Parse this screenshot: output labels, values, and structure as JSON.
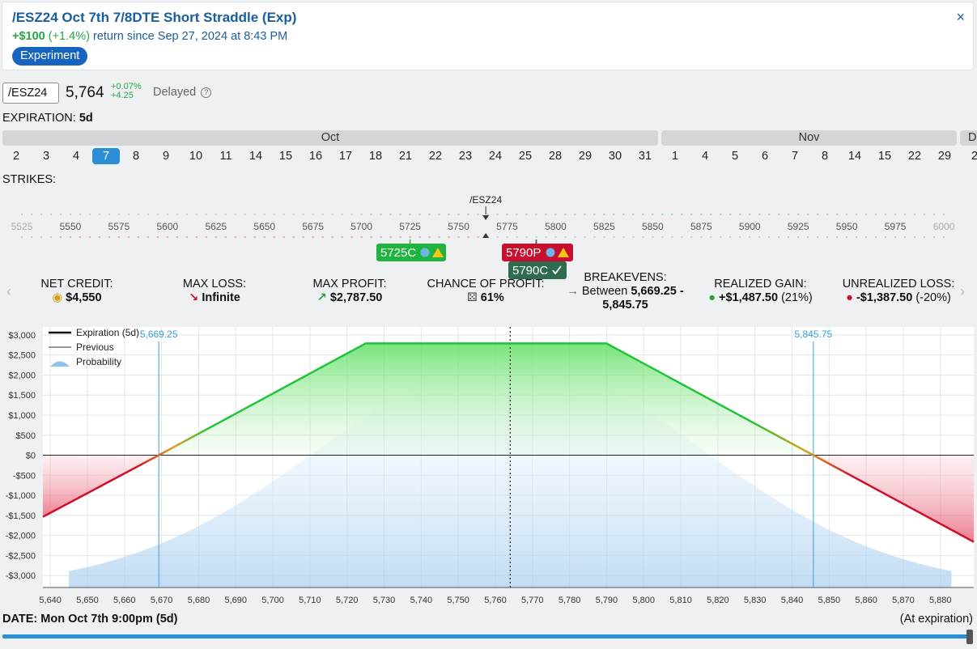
{
  "header": {
    "title": "/ESZ24 Oct 7th 7/8DTE Short Straddle (Exp)",
    "return_amount": "+$100",
    "return_pct": "(+1.4%)",
    "return_text": "return since Sep 27, 2024 at 8:43 PM",
    "tag": "Experiment",
    "close_icon": "×"
  },
  "quote": {
    "symbol": "/ESZ24",
    "price": "5,764",
    "change_pct": "+0.07%",
    "change_abs": "+4.25",
    "delayed": "Delayed",
    "help_icon": "?"
  },
  "expiration": {
    "label": "EXPIRATION:",
    "value": "5d",
    "months": [
      "Oct",
      "Nov",
      "D"
    ],
    "days": [
      "2",
      "3",
      "4",
      "7",
      "8",
      "9",
      "10",
      "11",
      "14",
      "15",
      "16",
      "17",
      "18",
      "21",
      "22",
      "23",
      "24",
      "25",
      "28",
      "29",
      "30",
      "31",
      "1",
      "4",
      "5",
      "6",
      "7",
      "8",
      "14",
      "15",
      "22",
      "29",
      "2"
    ],
    "selected_day": "7"
  },
  "strikes": {
    "label": "STRIKES:",
    "marker": "/ESZ24",
    "ticks": [
      "5525",
      "5550",
      "5575",
      "5600",
      "5625",
      "5650",
      "5675",
      "5700",
      "5725",
      "5750",
      "5775",
      "5800",
      "5825",
      "5850",
      "5875",
      "5900",
      "5925",
      "5950",
      "5975",
      "6000"
    ],
    "chips": [
      {
        "label": "5725C",
        "color": "#1fb33f",
        "strike": 5725
      },
      {
        "label": "5790P",
        "color": "#c8102e",
        "strike": 5790
      },
      {
        "label": "5790C",
        "color": "#2e6b4f",
        "strike": 5790
      }
    ]
  },
  "stats": [
    {
      "label": "NET CREDIT:",
      "value": "$4,550",
      "icon": "coins-icon"
    },
    {
      "label": "MAX LOSS:",
      "value": "Infinite",
      "icon": "arrow-down-right-icon"
    },
    {
      "label": "MAX PROFIT:",
      "value": "$2,787.50",
      "icon": "arrow-up-right-icon"
    },
    {
      "label": "CHANCE OF PROFIT:",
      "value": "61%",
      "icon": "dice-icon"
    },
    {
      "label": "BREAKEVENS:",
      "value_prefix": "Between",
      "value": "5,669.25 -",
      "value2": "5,845.75",
      "icon": "arrow-right-icon"
    },
    {
      "label": "REALIZED GAIN:",
      "value": "+$1,487.50",
      "suffix": "(21%)",
      "icon": "money-bag-icon"
    },
    {
      "label": "UNREALIZED LOSS:",
      "value": "-$1,387.50",
      "suffix": "(-20%)",
      "icon": "money-bag-red-icon"
    }
  ],
  "legend": {
    "expiration": "Expiration (5d)",
    "previous": "Previous",
    "probability": "Probability"
  },
  "chart_data": {
    "type": "line",
    "title": "",
    "xlabel": "",
    "ylabel": "",
    "xlim": [
      5638,
      5889
    ],
    "ylim": [
      -3300,
      3200
    ],
    "x_ticks": [
      "5,640",
      "5,650",
      "5,660",
      "5,670",
      "5,680",
      "5,690",
      "5,700",
      "5,710",
      "5,720",
      "5,730",
      "5,740",
      "5,750",
      "5,760",
      "5,770",
      "5,780",
      "5,790",
      "5,800",
      "5,810",
      "5,820",
      "5,830",
      "5,840",
      "5,850",
      "5,860",
      "5,870",
      "5,880"
    ],
    "y_ticks": [
      "$3,000",
      "$2,500",
      "$2,000",
      "$1,500",
      "$1,000",
      "$500",
      "$0",
      "-$500",
      "-$1,000",
      "-$1,500",
      "-$2,000",
      "-$2,500",
      "-$3,000"
    ],
    "series": [
      {
        "name": "Expiration (5d)",
        "x": [
          5638,
          5669.25,
          5725,
          5790,
          5845.75,
          5889
        ],
        "y": [
          -1537.5,
          0,
          2787.5,
          2787.5,
          0,
          -2162.5
        ]
      },
      {
        "name": "Previous",
        "x": [
          5638,
          5669.25,
          5725,
          5790,
          5845.75,
          5889
        ],
        "y": [
          -1537.5,
          0,
          2787.5,
          2787.5,
          0,
          -2162.5
        ]
      }
    ],
    "breakevens": [
      {
        "x": 5669.25,
        "label": "5,669.25"
      },
      {
        "x": 5845.75,
        "label": "5,845.75"
      }
    ],
    "current_price": 5764,
    "probability_peak": 2350,
    "colors": {
      "profit": "#22c33a",
      "loss": "#d0102a",
      "breakeven": "#3b9fd6",
      "probability": "#a6cdf0"
    }
  },
  "footer": {
    "date_label": "DATE:",
    "date_value": "Mon Oct 7th 9:00pm (5d)",
    "at_expiration": "(At expiration)"
  }
}
